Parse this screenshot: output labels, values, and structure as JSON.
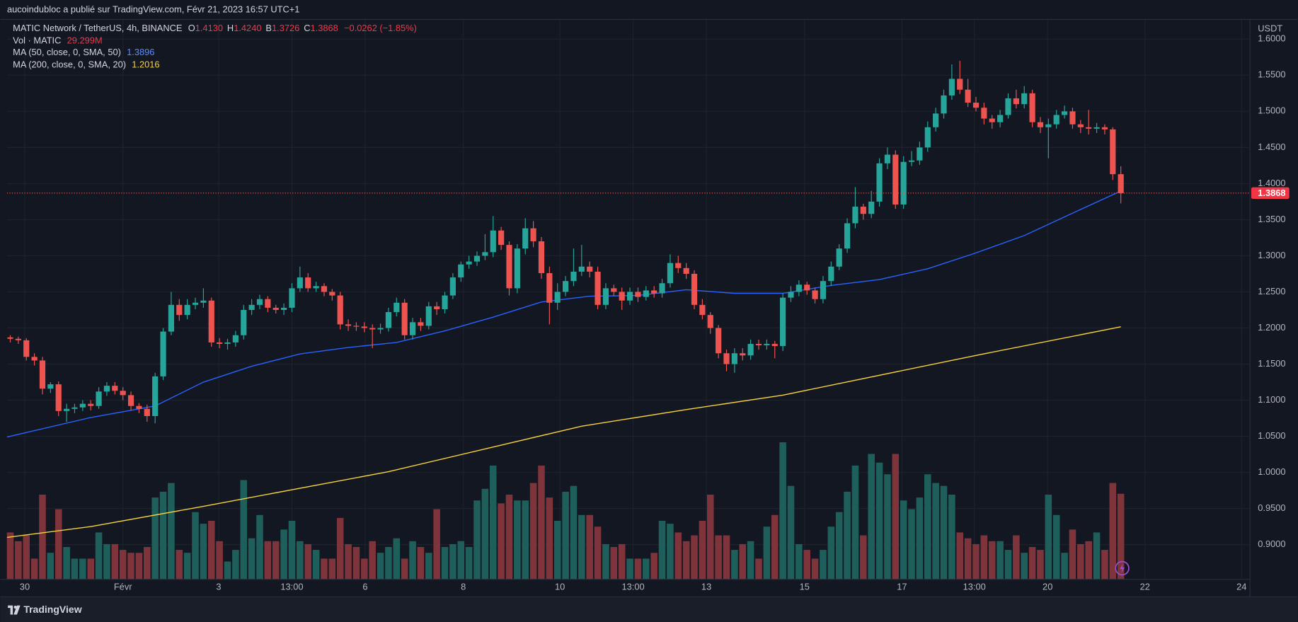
{
  "chart_data": {
    "type": "candlestick",
    "publisher": "aucoindubloc a publié sur TradingView.com, Févr 21, 2023 16:57 UTC+1",
    "title": "MATIC Network / TetherUS, 4h, BINANCE",
    "ohlc": [
      {
        "label": "O",
        "value": "1.4130"
      },
      {
        "label": "H",
        "value": "1.4240"
      },
      {
        "label": "B",
        "value": "1.3726"
      },
      {
        "label": "C",
        "value": "1.3868"
      }
    ],
    "change": "−0.0262 (−1.85%)",
    "y_unit": "USDT",
    "last_price_label": "1.3868",
    "brand": "TradingView",
    "up_color": "#26a69a",
    "down_color": "#ef5350",
    "grid": true,
    "ylim": [
      0.8524,
      1.6267
    ],
    "yticks": [
      {
        "value": 0.9,
        "label": "0.9000"
      },
      {
        "value": 0.95,
        "label": "0.9500"
      },
      {
        "value": 1.0,
        "label": "1.0000"
      },
      {
        "value": 1.05,
        "label": "1.0500"
      },
      {
        "value": 1.1,
        "label": "1.1000"
      },
      {
        "value": 1.15,
        "label": "1.1500"
      },
      {
        "value": 1.2,
        "label": "1.2000"
      },
      {
        "value": 1.25,
        "label": "1.2500"
      },
      {
        "value": 1.3,
        "label": "1.3000"
      },
      {
        "value": 1.35,
        "label": "1.3500"
      },
      {
        "value": 1.4,
        "label": "1.4000"
      },
      {
        "value": 1.45,
        "label": "1.4500"
      },
      {
        "value": 1.5,
        "label": "1.5000"
      },
      {
        "value": 1.55,
        "label": "1.5500"
      },
      {
        "value": 1.6,
        "label": "1.6000"
      }
    ],
    "xlim": [
      -0.4,
      154
    ],
    "xticks": [
      {
        "value": 1.8,
        "label": "30"
      },
      {
        "value": 14.0,
        "label": "Févr"
      },
      {
        "value": 25.9,
        "label": "3"
      },
      {
        "value": 35.0,
        "label": "13:00"
      },
      {
        "value": 44.1,
        "label": "6"
      },
      {
        "value": 56.3,
        "label": "8"
      },
      {
        "value": 68.3,
        "label": "10"
      },
      {
        "value": 77.4,
        "label": "13:00"
      },
      {
        "value": 86.5,
        "label": "13"
      },
      {
        "value": 98.7,
        "label": "15"
      },
      {
        "value": 110.8,
        "label": "17"
      },
      {
        "value": 119.8,
        "label": "13:00"
      },
      {
        "value": 128.9,
        "label": "20"
      },
      {
        "value": 141.0,
        "label": "22"
      },
      {
        "value": 153.0,
        "label": "24"
      }
    ],
    "candles": {
      "open": [
        1.187,
        1.185,
        1.183,
        1.16,
        1.155,
        1.116,
        1.122,
        1.085,
        1.088,
        1.09,
        1.095,
        1.092,
        1.112,
        1.12,
        1.113,
        1.107,
        1.092,
        1.088,
        1.078,
        1.133,
        1.195,
        1.232,
        1.218,
        1.232,
        1.235,
        1.238,
        1.18,
        1.178,
        1.18,
        1.19,
        1.225,
        1.232,
        1.24,
        1.228,
        1.225,
        1.228,
        1.255,
        1.27,
        1.255,
        1.258,
        1.25,
        1.245,
        1.205,
        1.203,
        1.202,
        1.2,
        1.198,
        1.2,
        1.222,
        1.235,
        1.19,
        1.208,
        1.203,
        1.23,
        1.226,
        1.245,
        1.27,
        1.288,
        1.292,
        1.3,
        1.305,
        1.335,
        1.315,
        1.255,
        1.31,
        1.338,
        1.32,
        1.276,
        1.235,
        1.25,
        1.265,
        1.278,
        1.285,
        1.278,
        1.232,
        1.255,
        1.25,
        1.238,
        1.25,
        1.243,
        1.252,
        1.248,
        1.262,
        1.29,
        1.283,
        1.275,
        1.232,
        1.218,
        1.2,
        1.165,
        1.15,
        1.165,
        1.162,
        1.178,
        1.176,
        1.178,
        1.175,
        1.242,
        1.25,
        1.26,
        1.252,
        1.24,
        1.265,
        1.285,
        1.31,
        1.345,
        1.368,
        1.358,
        1.375,
        1.428,
        1.44,
        1.371,
        1.43,
        1.432,
        1.45,
        1.478,
        1.497,
        1.522,
        1.545,
        1.53,
        1.512,
        1.505,
        1.49,
        1.485,
        1.495,
        1.518,
        1.51,
        1.525,
        1.485,
        1.478,
        1.482,
        1.495,
        1.5,
        1.482,
        1.478,
        1.476,
        1.478,
        1.475,
        1.413
      ],
      "high": [
        1.19,
        1.188,
        1.186,
        1.165,
        1.16,
        1.125,
        1.126,
        1.095,
        1.095,
        1.1,
        1.1,
        1.118,
        1.125,
        1.125,
        1.118,
        1.112,
        1.096,
        1.094,
        1.138,
        1.2,
        1.25,
        1.24,
        1.24,
        1.242,
        1.255,
        1.242,
        1.186,
        1.185,
        1.196,
        1.232,
        1.24,
        1.246,
        1.244,
        1.232,
        1.234,
        1.262,
        1.285,
        1.276,
        1.264,
        1.262,
        1.254,
        1.25,
        1.212,
        1.208,
        1.208,
        1.205,
        1.206,
        1.228,
        1.242,
        1.24,
        1.214,
        1.214,
        1.236,
        1.236,
        1.25,
        1.276,
        1.292,
        1.3,
        1.306,
        1.33,
        1.355,
        1.34,
        1.32,
        1.316,
        1.352,
        1.348,
        1.326,
        1.285,
        1.262,
        1.272,
        1.31,
        1.315,
        1.292,
        1.285,
        1.262,
        1.26,
        1.256,
        1.256,
        1.256,
        1.258,
        1.258,
        1.268,
        1.302,
        1.3,
        1.29,
        1.28,
        1.24,
        1.222,
        1.204,
        1.17,
        1.172,
        1.172,
        1.184,
        1.184,
        1.184,
        1.182,
        1.248,
        1.258,
        1.266,
        1.264,
        1.256,
        1.272,
        1.292,
        1.316,
        1.352,
        1.395,
        1.372,
        1.39,
        1.435,
        1.45,
        1.446,
        1.438,
        1.445,
        1.458,
        1.486,
        1.505,
        1.53,
        1.565,
        1.57,
        1.545,
        1.52,
        1.512,
        1.495,
        1.502,
        1.525,
        1.53,
        1.535,
        1.53,
        1.492,
        1.49,
        1.502,
        1.508,
        1.505,
        1.488,
        1.502,
        1.484,
        1.482,
        1.478,
        1.424
      ],
      "low": [
        1.18,
        1.178,
        1.155,
        1.148,
        1.108,
        1.11,
        1.078,
        1.07,
        1.082,
        1.085,
        1.086,
        1.088,
        1.106,
        1.108,
        1.1,
        1.086,
        1.082,
        1.07,
        1.068,
        1.128,
        1.19,
        1.21,
        1.212,
        1.226,
        1.228,
        1.174,
        1.172,
        1.17,
        1.174,
        1.184,
        1.218,
        1.226,
        1.222,
        1.22,
        1.218,
        1.222,
        1.25,
        1.25,
        1.25,
        1.244,
        1.238,
        1.198,
        1.196,
        1.196,
        1.194,
        1.172,
        1.192,
        1.195,
        1.216,
        1.184,
        1.184,
        1.196,
        1.198,
        1.218,
        1.22,
        1.24,
        1.264,
        1.282,
        1.286,
        1.294,
        1.298,
        1.308,
        1.245,
        1.248,
        1.302,
        1.312,
        1.268,
        1.205,
        1.225,
        1.244,
        1.258,
        1.272,
        1.27,
        1.226,
        1.226,
        1.244,
        1.225,
        1.232,
        1.236,
        1.238,
        1.242,
        1.242,
        1.256,
        1.276,
        1.268,
        1.226,
        1.212,
        1.192,
        1.158,
        1.14,
        1.138,
        1.155,
        1.156,
        1.17,
        1.17,
        1.158,
        1.168,
        1.236,
        1.244,
        1.246,
        1.234,
        1.234,
        1.258,
        1.28,
        1.304,
        1.338,
        1.35,
        1.352,
        1.368,
        1.42,
        1.365,
        1.365,
        1.424,
        1.426,
        1.444,
        1.472,
        1.49,
        1.516,
        1.524,
        1.506,
        1.5,
        1.482,
        1.476,
        1.478,
        1.49,
        1.504,
        1.504,
        1.478,
        1.47,
        1.435,
        1.476,
        1.49,
        1.476,
        1.47,
        1.468,
        1.47,
        1.468,
        1.405,
        1.3726
      ],
      "close": [
        1.185,
        1.183,
        1.16,
        1.155,
        1.116,
        1.122,
        1.085,
        1.088,
        1.09,
        1.095,
        1.092,
        1.112,
        1.12,
        1.113,
        1.107,
        1.092,
        1.088,
        1.078,
        1.133,
        1.195,
        1.232,
        1.218,
        1.232,
        1.235,
        1.238,
        1.18,
        1.178,
        1.18,
        1.19,
        1.225,
        1.232,
        1.24,
        1.228,
        1.225,
        1.228,
        1.255,
        1.27,
        1.255,
        1.258,
        1.25,
        1.245,
        1.205,
        1.203,
        1.202,
        1.2,
        1.198,
        1.2,
        1.222,
        1.235,
        1.19,
        1.208,
        1.203,
        1.23,
        1.226,
        1.245,
        1.27,
        1.288,
        1.292,
        1.3,
        1.305,
        1.335,
        1.315,
        1.255,
        1.31,
        1.338,
        1.32,
        1.276,
        1.235,
        1.25,
        1.265,
        1.278,
        1.285,
        1.278,
        1.232,
        1.255,
        1.25,
        1.238,
        1.25,
        1.243,
        1.252,
        1.248,
        1.262,
        1.29,
        1.283,
        1.275,
        1.232,
        1.218,
        1.2,
        1.165,
        1.15,
        1.165,
        1.162,
        1.178,
        1.176,
        1.178,
        1.175,
        1.242,
        1.25,
        1.26,
        1.252,
        1.24,
        1.265,
        1.285,
        1.31,
        1.345,
        1.368,
        1.358,
        1.375,
        1.428,
        1.44,
        1.371,
        1.43,
        1.432,
        1.45,
        1.478,
        1.497,
        1.522,
        1.545,
        1.53,
        1.512,
        1.505,
        1.49,
        1.485,
        1.495,
        1.518,
        1.51,
        1.525,
        1.485,
        1.478,
        1.482,
        1.495,
        1.5,
        1.482,
        1.478,
        1.476,
        1.478,
        1.475,
        1.413,
        1.3868
      ]
    },
    "volume": {
      "name": "Vol · MATIC",
      "value_label": "29.299M",
      "up_color": "#1f5f5b",
      "down_color": "#7e343a",
      "vlim": [
        0,
        60
      ],
      "values": [
        16,
        13,
        15,
        7,
        29,
        9,
        24,
        11,
        7,
        7,
        7,
        16,
        12,
        12,
        10,
        9,
        9,
        11,
        28,
        30,
        33,
        10,
        9,
        23,
        19,
        20,
        13,
        6,
        10,
        34,
        14,
        22,
        13,
        13,
        17,
        20,
        13,
        12,
        10,
        7,
        7,
        21,
        12,
        11,
        7,
        13,
        9,
        11,
        14,
        7,
        13,
        11,
        9,
        24,
        11,
        12,
        13,
        11,
        27,
        31,
        39,
        26,
        29,
        27,
        27,
        33,
        39,
        28,
        20,
        30,
        32,
        22,
        22,
        18,
        12,
        11,
        12,
        7,
        7,
        7,
        9,
        20,
        19,
        16,
        13,
        15,
        20,
        29,
        15,
        15,
        10,
        12,
        13,
        7,
        18,
        22,
        47,
        32,
        12,
        10,
        7,
        10,
        18,
        23,
        30,
        39,
        15,
        43,
        40,
        36,
        43,
        27,
        24,
        28,
        36,
        33,
        32,
        29,
        16,
        14,
        12,
        15,
        13,
        13,
        10,
        15,
        9,
        11,
        10,
        29,
        22,
        9,
        17,
        12,
        13,
        16,
        10,
        33,
        29.299
      ]
    },
    "series": [
      {
        "name": "MA (50, close, 0, SMA, 50)",
        "color": "#2962ff",
        "label_color": "#5b8cff",
        "value_label": "1.3896",
        "x": [
          -0.4,
          10,
          18,
          24,
          30,
          36,
          42,
          48,
          54,
          60,
          66,
          72,
          78,
          84,
          90,
          96,
          102,
          108,
          114,
          120,
          126,
          132,
          138
        ],
        "values": [
          1.049,
          1.076,
          1.092,
          1.125,
          1.147,
          1.164,
          1.173,
          1.18,
          1.196,
          1.215,
          1.236,
          1.244,
          1.245,
          1.253,
          1.248,
          1.248,
          1.259,
          1.267,
          1.282,
          1.304,
          1.328,
          1.359,
          1.3896
        ]
      },
      {
        "name": "MA (200, close, 0, SMA, 20)",
        "color": "#f7d23b",
        "label_color": "#f7d23b",
        "value_label": "1.2016",
        "x": [
          -0.4,
          10,
          24,
          47,
          71,
          84,
          96,
          120,
          138
        ],
        "values": [
          0.91,
          0.925,
          0.953,
          1.001,
          1.064,
          1.087,
          1.107,
          1.162,
          1.2016
        ]
      }
    ]
  }
}
